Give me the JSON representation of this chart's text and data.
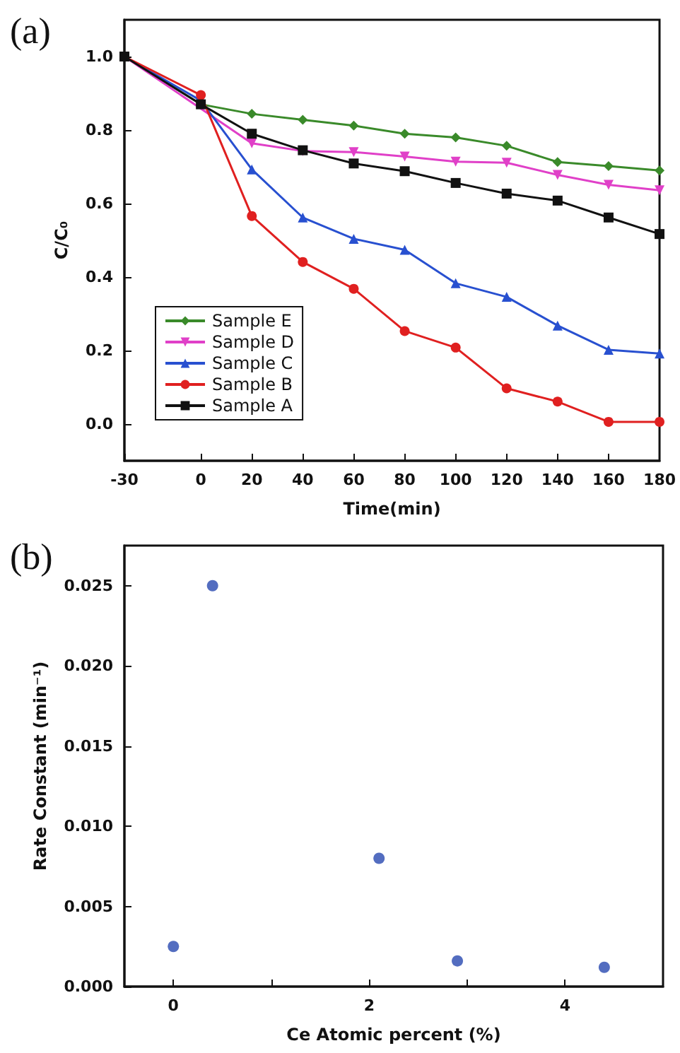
{
  "chart_data": [
    {
      "type": "line",
      "title": "(a)",
      "xlabel": "Time(min)",
      "ylabel": "C/C₀",
      "x": [
        -30,
        0,
        20,
        40,
        60,
        80,
        100,
        120,
        140,
        160,
        180
      ],
      "series": [
        {
          "name": "Sample E",
          "color": "#3a8a2a",
          "marker": "diamond",
          "values": [
            1.0,
            0.87,
            0.844,
            0.828,
            0.812,
            0.79,
            0.78,
            0.757,
            0.713,
            0.702,
            0.69
          ]
        },
        {
          "name": "Sample D",
          "color": "#e040c8",
          "marker": "triangle-down",
          "values": [
            1.0,
            null,
            0.764,
            0.743,
            0.74,
            0.728,
            0.714,
            0.711,
            0.678,
            0.651,
            0.636
          ]
        },
        {
          "name": "Sample C",
          "color": "#2850d0",
          "marker": "triangle",
          "values": [
            1.0,
            0.88,
            0.693,
            0.562,
            0.504,
            0.474,
            0.383,
            0.346,
            0.268,
            0.202,
            0.192
          ]
        },
        {
          "name": "Sample B",
          "color": "#e02020",
          "marker": "circle",
          "values": [
            1.0,
            0.895,
            0.566,
            0.441,
            0.368,
            0.253,
            0.208,
            0.097,
            0.061,
            0.006,
            0.006
          ]
        },
        {
          "name": "Sample A",
          "color": "#111111",
          "marker": "square",
          "values": [
            1.0,
            0.87,
            0.79,
            0.745,
            0.709,
            0.688,
            0.656,
            0.627,
            0.608,
            0.562,
            0.517
          ]
        }
      ],
      "xlim": [
        -30,
        180
      ],
      "xticks": [
        -30,
        0,
        20,
        40,
        60,
        80,
        100,
        120,
        140,
        160,
        180
      ],
      "ylim": [
        -0.1,
        1.1
      ],
      "yticks": [
        {
          "value": 0,
          "label": "0.0"
        },
        {
          "value": 0.2,
          "label": "0.2"
        },
        {
          "value": 0.4,
          "label": "0.4"
        },
        {
          "value": 0.6,
          "label": "0.6"
        },
        {
          "value": 0.8,
          "label": "0.8"
        },
        {
          "value": 1.0,
          "label": "1.0"
        }
      ],
      "grid": false,
      "legend": "bottom left",
      "line_style": "solid"
    },
    {
      "type": "scatter",
      "title": "(b)",
      "xlabel": "Ce Atomic percent (%)",
      "ylabel": "Rate Constant (min⁻¹)",
      "x": [
        0,
        0.4,
        2.1,
        2.9,
        4.4
      ],
      "series": [
        {
          "color": "#2848b0",
          "values": [
            0.0025,
            0.025,
            0.008,
            0.0016,
            0.0012
          ]
        }
      ],
      "xlim": [
        -0.5,
        5
      ],
      "xticks": [
        0,
        {
          "value": 1,
          "label": null
        },
        2,
        {
          "value": 3,
          "label": null
        },
        4
      ],
      "ylim": [
        0,
        0.0275
      ],
      "yticks": [
        {
          "value": 0,
          "label": "0.000"
        },
        {
          "value": 0.005,
          "label": "0.005"
        },
        {
          "value": 0.01,
          "label": "0.010"
        },
        {
          "value": 0.015,
          "label": "0.015"
        },
        {
          "value": 0.02,
          "label": "0.020"
        },
        {
          "value": 0.025,
          "label": "0.025"
        }
      ],
      "grid": false,
      "legend": false,
      "marker": "circle"
    }
  ]
}
